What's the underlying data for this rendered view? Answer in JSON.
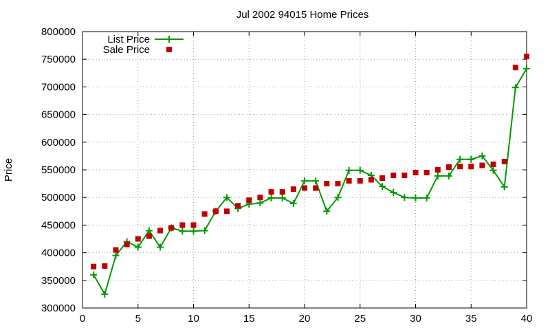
{
  "chart_data": {
    "type": "line",
    "title": "Jul 2002 94015 Home Prices",
    "xlabel": "",
    "ylabel": "Price",
    "xlim": [
      0,
      40
    ],
    "ylim": [
      300000,
      800000
    ],
    "xticks": [
      0,
      5,
      10,
      15,
      20,
      25,
      30,
      35,
      40
    ],
    "yticks": [
      300000,
      350000,
      400000,
      450000,
      500000,
      550000,
      600000,
      650000,
      700000,
      750000,
      800000
    ],
    "grid": true,
    "legend_position": "top-left",
    "series": [
      {
        "name": "List Price",
        "style": "linespoints",
        "color": "#009900",
        "x": [
          1,
          2,
          3,
          4,
          5,
          6,
          7,
          8,
          9,
          10,
          11,
          12,
          13,
          14,
          15,
          16,
          17,
          18,
          19,
          20,
          21,
          22,
          23,
          24,
          25,
          26,
          27,
          28,
          29,
          30,
          31,
          32,
          33,
          34,
          35,
          36,
          37,
          38,
          39,
          40
        ],
        "y": [
          360000,
          325000,
          395000,
          420000,
          410000,
          440000,
          410000,
          445000,
          439000,
          439000,
          440000,
          475000,
          500000,
          480000,
          488000,
          490000,
          499000,
          499000,
          489000,
          530000,
          530000,
          475000,
          500000,
          549000,
          549000,
          540000,
          520000,
          509000,
          500000,
          499000,
          499000,
          539000,
          539000,
          569000,
          569000,
          575000,
          549000,
          519000,
          699000,
          733000
        ]
      },
      {
        "name": "Sale Price",
        "style": "points",
        "color": "#c00000",
        "x": [
          1,
          2,
          3,
          4,
          5,
          6,
          7,
          8,
          9,
          10,
          11,
          12,
          13,
          14,
          15,
          16,
          17,
          18,
          19,
          20,
          21,
          22,
          23,
          24,
          25,
          26,
          27,
          28,
          29,
          30,
          31,
          32,
          33,
          34,
          35,
          36,
          37,
          38,
          39,
          40
        ],
        "y": [
          375000,
          376000,
          405000,
          415000,
          425000,
          430000,
          440000,
          445000,
          450000,
          450000,
          470000,
          475000,
          475000,
          485000,
          495000,
          500000,
          510000,
          510000,
          515000,
          517000,
          517000,
          525000,
          525000,
          530000,
          530000,
          532000,
          535000,
          540000,
          540000,
          545000,
          545000,
          550000,
          555000,
          556000,
          556000,
          558000,
          560000,
          565000,
          735000,
          755000
        ]
      }
    ]
  }
}
